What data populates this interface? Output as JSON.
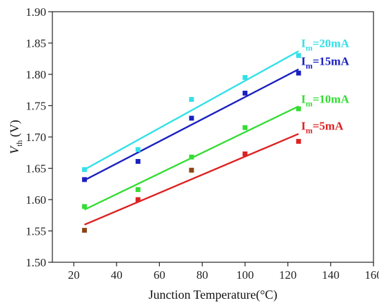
{
  "chart_data": {
    "type": "scatter",
    "title": "",
    "xlabel": "Junction Temperature(°C)",
    "ylabel_main": "V",
    "ylabel_sub": "th",
    "ylabel_unit": " (V)",
    "xlim": [
      10,
      160
    ],
    "ylim": [
      1.5,
      1.9
    ],
    "xticks": [
      20,
      40,
      60,
      80,
      100,
      120,
      140,
      160
    ],
    "yticks": [
      1.5,
      1.55,
      1.6,
      1.65,
      1.7,
      1.75,
      1.8,
      1.85,
      1.9
    ],
    "xtick_labels": [
      "20",
      "40",
      "60",
      "80",
      "100",
      "120",
      "140",
      "160"
    ],
    "ytick_labels": [
      "1.50",
      "1.55",
      "1.60",
      "1.65",
      "1.70",
      "1.75",
      "1.80",
      "1.85",
      "1.90"
    ],
    "grid": false,
    "series": [
      {
        "name": "Im=20mA",
        "label_parts": {
          "main": "I",
          "sub": "m",
          "rest": "=20mA"
        },
        "color": "#33e0e8",
        "x": [
          25,
          50,
          75,
          100,
          125
        ],
        "y": [
          1.648,
          1.68,
          1.76,
          1.795,
          1.83
        ],
        "fit": {
          "x": [
            25,
            125
          ],
          "y": [
            1.648,
            1.837
          ]
        }
      },
      {
        "name": "Im=15mA",
        "label_parts": {
          "main": "I",
          "sub": "m",
          "rest": "=15mA"
        },
        "color": "#1a20c0",
        "x": [
          25,
          50,
          75,
          100,
          125
        ],
        "y": [
          1.632,
          1.661,
          1.73,
          1.77,
          1.802
        ],
        "fit": {
          "x": [
            25,
            125
          ],
          "y": [
            1.631,
            1.808
          ]
        }
      },
      {
        "name": "Im=10mA",
        "label_parts": {
          "main": "I",
          "sub": "m",
          "rest": "=10mA"
        },
        "color": "#33dd33",
        "x": [
          25,
          50,
          75,
          100,
          125
        ],
        "y": [
          1.589,
          1.616,
          1.668,
          1.715,
          1.745
        ],
        "fit": {
          "x": [
            25,
            125
          ],
          "y": [
            1.584,
            1.749
          ]
        }
      },
      {
        "name": "Im=5mA",
        "label_parts": {
          "main": "I",
          "sub": "m",
          "rest": "=5mA"
        },
        "color": "#dd2222",
        "x": [
          25,
          50,
          75,
          100,
          125
        ],
        "y": [
          1.551,
          1.6,
          1.647,
          1.673,
          1.693
        ],
        "fit": {
          "x": [
            25,
            125
          ],
          "y": [
            1.56,
            1.705
          ]
        },
        "marker_colors": [
          "#8b4513",
          "#dd2222",
          "#8b4513",
          "#dd2222",
          "#dd2222"
        ]
      }
    ]
  }
}
